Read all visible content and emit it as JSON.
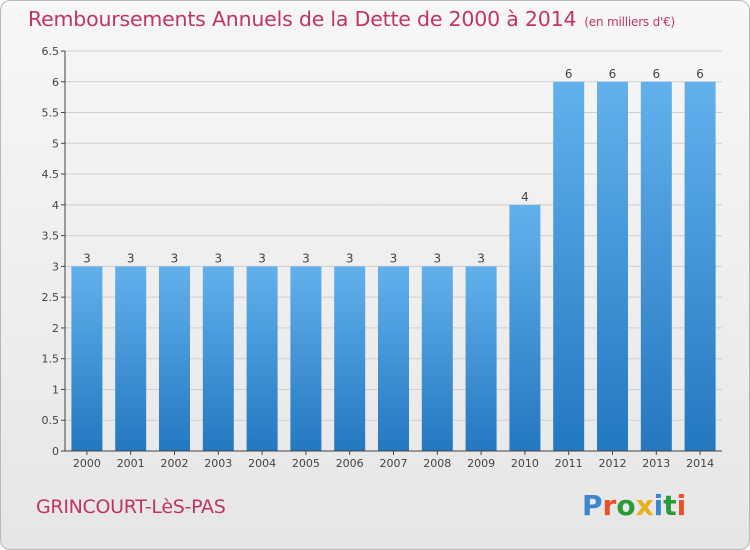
{
  "title": "Remboursements Annuels de la Dette de 2000 à 2014",
  "subtitle": "(en milliers d'€)",
  "commune": "GRINCOURT-LèS-PAS",
  "brand": {
    "name": "Proxiti",
    "letter_colors": [
      "#3a86d0",
      "#e8502a",
      "#2a9a3a",
      "#e8b21a",
      "#3a86d0",
      "#2a9a3a",
      "#e8502a"
    ]
  },
  "colors": {
    "bar_light": "#62b1ec",
    "bar_dark": "#2478c0",
    "title": "#c03464",
    "axis": "#444444",
    "grid": "#cfcfcf"
  },
  "chart_data": {
    "type": "bar",
    "title": "Remboursements Annuels de la Dette de 2000 à 2014",
    "ylabel": "en milliers d'€",
    "xlabel": "",
    "categories": [
      "2000",
      "2001",
      "2002",
      "2003",
      "2004",
      "2005",
      "2006",
      "2007",
      "2008",
      "2009",
      "2010",
      "2011",
      "2012",
      "2013",
      "2014"
    ],
    "values": [
      3,
      3,
      3,
      3,
      3,
      3,
      3,
      3,
      3,
      3,
      4,
      6,
      6,
      6,
      6
    ],
    "data_labels": [
      "3",
      "3",
      "3",
      "3",
      "3",
      "3",
      "3",
      "3",
      "3",
      "3",
      "4",
      "6",
      "6",
      "6",
      "6"
    ],
    "ylim": [
      0,
      6.5
    ],
    "yticks": [
      "0",
      "0.5",
      "1",
      "1.5",
      "2",
      "2.5",
      "3",
      "3.5",
      "4",
      "4.5",
      "5",
      "5.5",
      "6",
      "6.5"
    ],
    "grid": true
  }
}
